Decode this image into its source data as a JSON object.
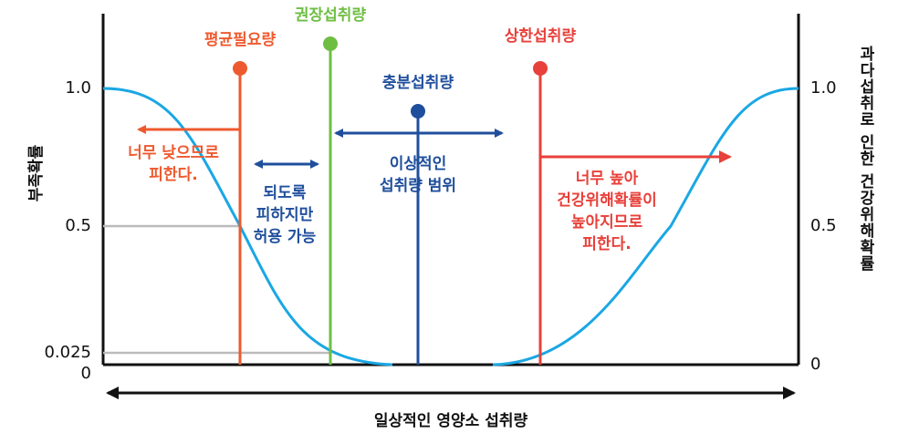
{
  "left_axis": {
    "label": "부족확률",
    "ticks": [
      "1.0",
      "0.5",
      "0.025",
      "0"
    ]
  },
  "right_axis": {
    "label": "과다섭취로 인한 건강위해확률",
    "ticks": [
      "1.0",
      "0.5",
      "0"
    ]
  },
  "x_axis": {
    "label": "일상적인 영양소 섭취량"
  },
  "markers": [
    "평균필요량",
    "권장섭취량",
    "충분섭취량",
    "상한섭취량"
  ],
  "notes": {
    "too_low": [
      "너무 낮으므로",
      "피한다."
    ],
    "tolerable": [
      "되도록",
      "피하지만",
      "허용 가능"
    ],
    "ideal": [
      "이상적인",
      "섭취량 범위"
    ],
    "too_high": [
      "너무 높아",
      "건강위해확률이",
      "높아지므로",
      "피한다."
    ]
  }
}
